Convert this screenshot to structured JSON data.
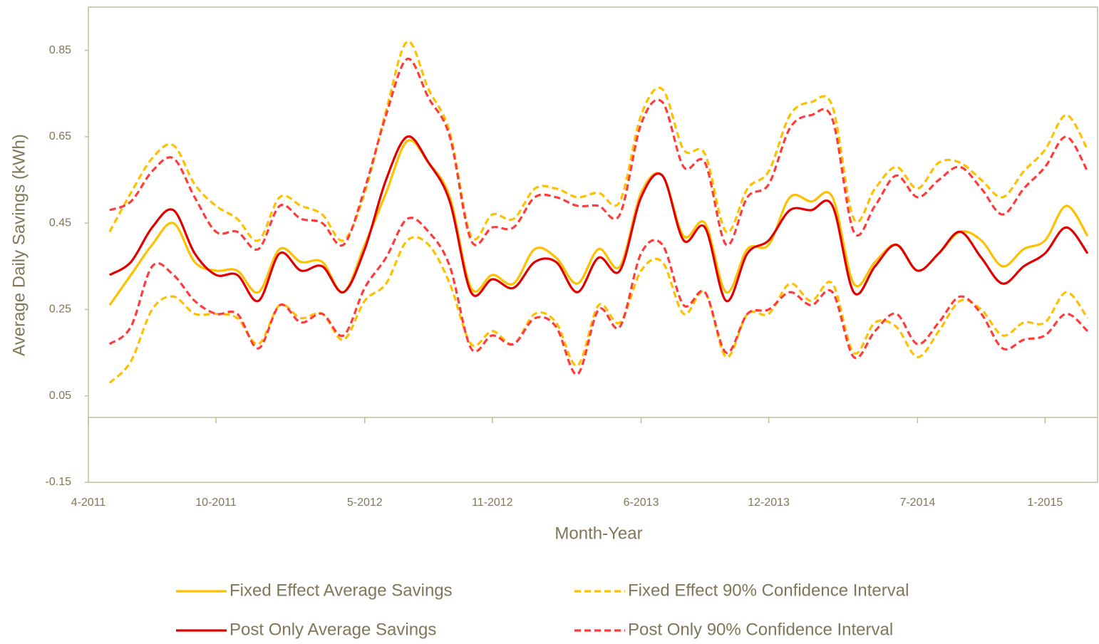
{
  "chart_data": {
    "type": "line",
    "x_title": "Month-Year",
    "y_title": "Average Daily Savings (kWh)",
    "x": [
      "5-2011",
      "6-2011",
      "7-2011",
      "8-2011",
      "9-2011",
      "10-2011",
      "11-2011",
      "12-2011",
      "1-2012",
      "2-2012",
      "3-2012",
      "4-2012",
      "5-2012",
      "6-2012",
      "7-2012",
      "8-2012",
      "9-2012",
      "10-2012",
      "11-2012",
      "12-2012",
      "1-2013",
      "2-2013",
      "3-2013",
      "4-2013",
      "5-2013",
      "6-2013",
      "7-2013",
      "8-2013",
      "9-2013",
      "10-2013",
      "11-2013",
      "12-2013",
      "1-2014",
      "2-2014",
      "3-2014",
      "4-2014",
      "5-2014",
      "6-2014",
      "7-2014",
      "8-2014",
      "9-2014",
      "10-2014",
      "11-2014",
      "12-2014",
      "1-2015",
      "2-2015",
      "3-2015"
    ],
    "xlim": [
      "4-2011",
      "3-2015"
    ],
    "xticks": [
      "4-2011",
      "10-2011",
      "5-2012",
      "11-2012",
      "6-2013",
      "12-2013",
      "7-2014",
      "1-2015"
    ],
    "ylim": [
      -0.15,
      0.95
    ],
    "yticks": [
      -0.15,
      0.05,
      0.25,
      0.45,
      0.65,
      0.85
    ],
    "legend": "bottom",
    "series": [
      {
        "name": "Fixed Effect Average Savings",
        "color": "#ffc000",
        "dashed": false,
        "values": [
          0.26,
          0.33,
          0.4,
          0.45,
          0.36,
          0.34,
          0.34,
          0.29,
          0.39,
          0.36,
          0.36,
          0.29,
          0.4,
          0.52,
          0.64,
          0.59,
          0.51,
          0.3,
          0.33,
          0.31,
          0.39,
          0.37,
          0.31,
          0.39,
          0.35,
          0.52,
          0.56,
          0.42,
          0.45,
          0.29,
          0.39,
          0.4,
          0.51,
          0.5,
          0.51,
          0.31,
          0.36,
          0.4,
          0.34,
          0.38,
          0.43,
          0.41,
          0.35,
          0.39,
          0.41,
          0.49,
          0.42
        ]
      },
      {
        "name": "Fixed Effect 90% Confidence Interval",
        "color": "#ffc000",
        "dashed": true,
        "upper": [
          0.43,
          0.52,
          0.6,
          0.63,
          0.54,
          0.49,
          0.46,
          0.41,
          0.51,
          0.49,
          0.47,
          0.41,
          0.52,
          0.71,
          0.87,
          0.76,
          0.66,
          0.42,
          0.47,
          0.46,
          0.53,
          0.53,
          0.51,
          0.52,
          0.5,
          0.7,
          0.76,
          0.62,
          0.61,
          0.43,
          0.53,
          0.57,
          0.7,
          0.73,
          0.72,
          0.46,
          0.53,
          0.58,
          0.53,
          0.59,
          0.59,
          0.55,
          0.51,
          0.57,
          0.62,
          0.7,
          0.62
        ],
        "lower": [
          0.08,
          0.13,
          0.25,
          0.28,
          0.24,
          0.24,
          0.23,
          0.17,
          0.26,
          0.23,
          0.24,
          0.18,
          0.27,
          0.31,
          0.41,
          0.4,
          0.31,
          0.17,
          0.2,
          0.17,
          0.24,
          0.22,
          0.12,
          0.26,
          0.22,
          0.34,
          0.36,
          0.24,
          0.29,
          0.14,
          0.24,
          0.24,
          0.31,
          0.27,
          0.31,
          0.15,
          0.22,
          0.21,
          0.14,
          0.2,
          0.27,
          0.25,
          0.19,
          0.22,
          0.22,
          0.29,
          0.23
        ]
      },
      {
        "name": "Post Only Average Savings",
        "color": "#e00000",
        "dashed": false,
        "values": [
          0.33,
          0.36,
          0.44,
          0.48,
          0.38,
          0.33,
          0.33,
          0.27,
          0.38,
          0.34,
          0.35,
          0.29,
          0.39,
          0.55,
          0.65,
          0.59,
          0.5,
          0.29,
          0.32,
          0.3,
          0.36,
          0.36,
          0.29,
          0.37,
          0.34,
          0.51,
          0.56,
          0.41,
          0.44,
          0.27,
          0.38,
          0.41,
          0.48,
          0.48,
          0.49,
          0.29,
          0.35,
          0.4,
          0.34,
          0.38,
          0.43,
          0.37,
          0.31,
          0.35,
          0.38,
          0.44,
          0.38
        ]
      },
      {
        "name": "Post Only 90% Confidence Interval",
        "color": "#ff3b3b",
        "dashed": true,
        "upper": [
          0.48,
          0.5,
          0.57,
          0.6,
          0.51,
          0.43,
          0.43,
          0.39,
          0.49,
          0.46,
          0.45,
          0.4,
          0.53,
          0.7,
          0.83,
          0.74,
          0.65,
          0.41,
          0.44,
          0.44,
          0.51,
          0.51,
          0.49,
          0.49,
          0.47,
          0.68,
          0.73,
          0.58,
          0.59,
          0.4,
          0.51,
          0.54,
          0.67,
          0.7,
          0.69,
          0.43,
          0.49,
          0.56,
          0.51,
          0.55,
          0.58,
          0.53,
          0.47,
          0.53,
          0.58,
          0.65,
          0.57
        ],
        "lower": [
          0.17,
          0.21,
          0.35,
          0.33,
          0.27,
          0.24,
          0.24,
          0.16,
          0.26,
          0.22,
          0.24,
          0.19,
          0.3,
          0.37,
          0.46,
          0.43,
          0.35,
          0.16,
          0.19,
          0.17,
          0.23,
          0.21,
          0.1,
          0.25,
          0.21,
          0.38,
          0.4,
          0.26,
          0.29,
          0.15,
          0.24,
          0.25,
          0.29,
          0.26,
          0.29,
          0.14,
          0.2,
          0.24,
          0.17,
          0.22,
          0.28,
          0.24,
          0.16,
          0.18,
          0.19,
          0.24,
          0.2
        ]
      }
    ]
  }
}
